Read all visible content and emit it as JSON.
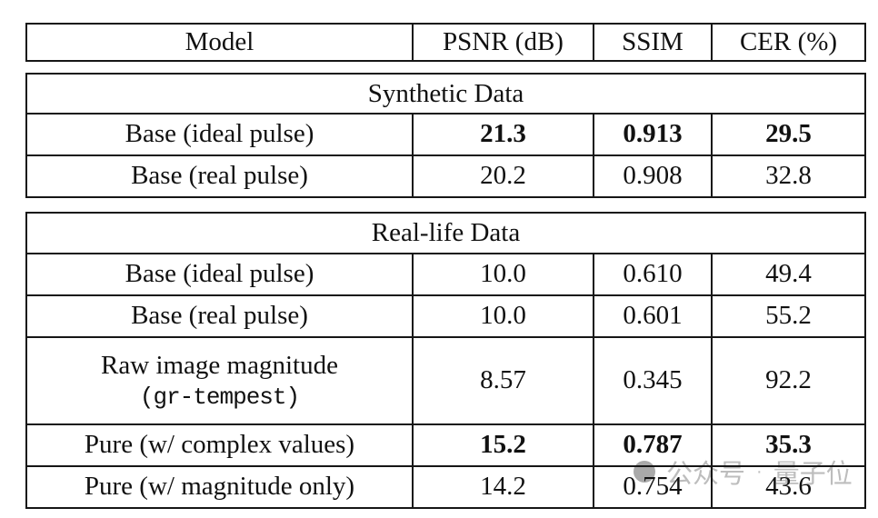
{
  "table": {
    "columns": {
      "model": "Model",
      "psnr": "PSNR (dB)",
      "ssim": "SSIM",
      "cer": "CER (%)"
    },
    "sections": [
      {
        "title": "Synthetic Data",
        "rows": [
          {
            "model": "Base (ideal pulse)",
            "psnr": "21.3",
            "ssim": "0.913",
            "cer": "29.5",
            "bold": true
          },
          {
            "model": "Base (real pulse)",
            "psnr": "20.2",
            "ssim": "0.908",
            "cer": "32.8",
            "bold": false
          }
        ]
      },
      {
        "title": "Real-life Data",
        "rows": [
          {
            "model": "Base (ideal pulse)",
            "psnr": "10.0",
            "ssim": "0.610",
            "cer": "49.4",
            "bold": false
          },
          {
            "model": "Base (real pulse)",
            "psnr": "10.0",
            "ssim": "0.601",
            "cer": "55.2",
            "bold": false
          },
          {
            "model": "Raw image magnitude",
            "model_line2": "(gr-tempest)",
            "psnr": "8.57",
            "ssim": "0.345",
            "cer": "92.2",
            "bold": false
          },
          {
            "model": "Pure (w/ complex values)",
            "psnr": "15.2",
            "ssim": "0.787",
            "cer": "35.3",
            "bold": true
          },
          {
            "model": "Pure (w/ magnitude only)",
            "psnr": "14.2",
            "ssim": "0.754",
            "cer": "43.6",
            "bold": false
          }
        ]
      }
    ]
  },
  "watermark": {
    "prefix": "公众号",
    "separator": "·",
    "suffix": "量子位",
    "logo": "qbitai-logo-circle",
    "color": "#bdbdbd"
  }
}
